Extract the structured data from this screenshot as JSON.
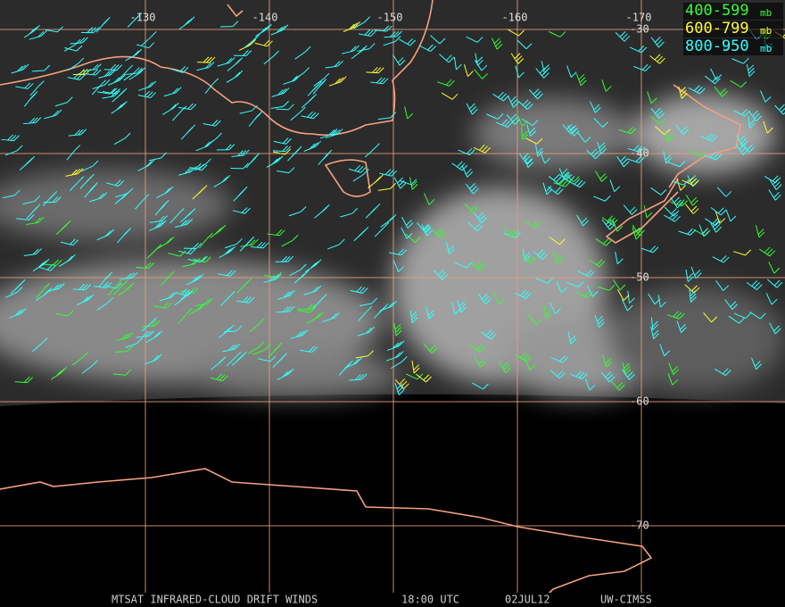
{
  "map": {
    "lon_labels": [
      "-130",
      "-140",
      "-150",
      "-160",
      "-170"
    ],
    "lat_labels": [
      "-30",
      "-40",
      "-50",
      "-60",
      "-70"
    ],
    "legend": [
      {
        "range": "400-599",
        "unit": "mb",
        "color": "#33ff33"
      },
      {
        "range": "600-799",
        "unit": "mb",
        "color": "#ffff33"
      },
      {
        "range": "800-950",
        "unit": "mb",
        "color": "#33ffff"
      }
    ],
    "footer": [
      "MTSAT INFRARED-CLOUD DRIFT WINDS",
      "18:00 UTC",
      "02JUL12",
      "UW-CIMSS"
    ]
  }
}
